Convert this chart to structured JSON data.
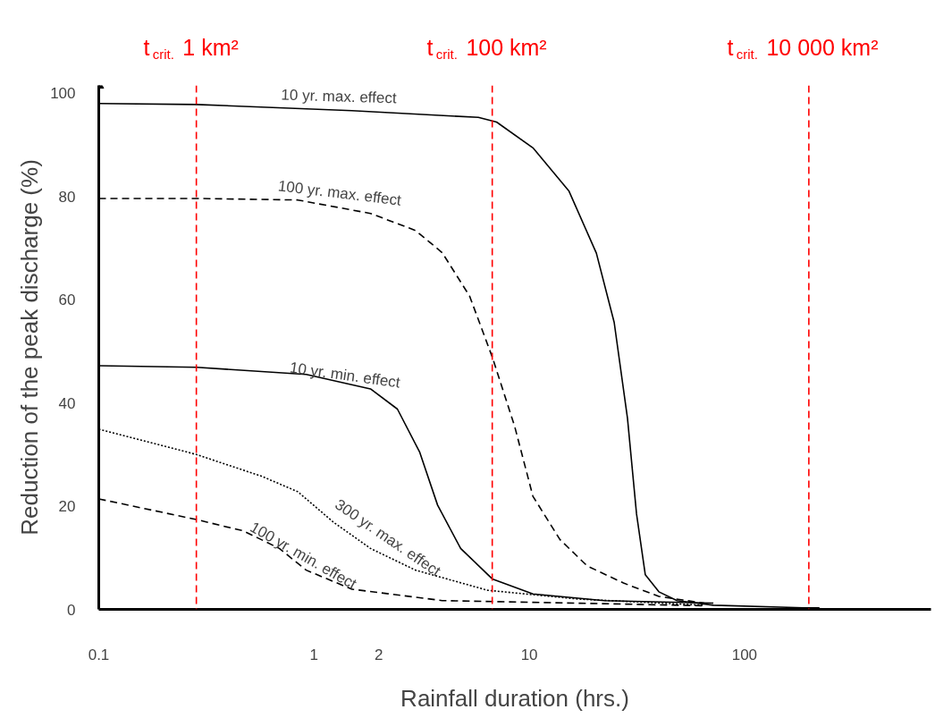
{
  "chart_data": {
    "type": "line",
    "xlabel": "Rainfall duration (hrs.)",
    "ylabel": "Reduction of the peak discharge (%)",
    "log": "x",
    "xlim": [
      0.1,
      735
    ],
    "ylim": [
      0,
      101.5
    ],
    "xticks": [
      0.1,
      1,
      2,
      10,
      100
    ],
    "yticks": [
      0,
      20,
      40,
      60,
      80,
      100
    ],
    "grid": false,
    "marker": "none",
    "series": [
      {
        "color": "#000000",
        "line_style": "solid",
        "x": [
          0.1,
          0.284,
          1.5,
          5.8,
          7.05,
          10.4,
          15.3,
          20.5,
          24.8,
          28.6,
          31.5,
          34.6,
          40,
          48.6,
          71.7,
          188,
          223
        ],
        "values": [
          98,
          97.8,
          96.6,
          95.3,
          94.4,
          89.4,
          81,
          69,
          55.6,
          37,
          18.5,
          6.7,
          3.4,
          1.7,
          0.8,
          0.3,
          0.3
        ]
      },
      {
        "color": "#000000",
        "line_style": "dashed",
        "x": [
          0.1,
          0.284,
          0.84,
          1.83,
          2.96,
          3.94,
          5.28,
          6.73,
          8.56,
          10.4,
          13.9,
          18.6,
          27.4,
          40,
          65
        ],
        "values": [
          79.6,
          79.6,
          79.3,
          76.7,
          73.4,
          69.1,
          60.7,
          48.9,
          35.4,
          21.9,
          13.5,
          8.4,
          5.1,
          2.5,
          1.2
        ]
      },
      {
        "color": "#000000",
        "line_style": "solid",
        "x": [
          0.1,
          0.284,
          0.92,
          1.83,
          2.44,
          3.1,
          3.75,
          4.8,
          6.73,
          10.4,
          22.3,
          71.7
        ],
        "values": [
          47.2,
          46.9,
          45.5,
          42.7,
          38.8,
          30.4,
          20.2,
          11.8,
          5.9,
          3.0,
          1.7,
          1.2
        ]
      },
      {
        "color": "#000000",
        "line_style": "dotted",
        "x": [
          0.1,
          0.284,
          0.57,
          0.84,
          1.23,
          1.83,
          2.96,
          6.4,
          16.8,
          65
        ],
        "values": [
          34.9,
          30,
          25.8,
          22.8,
          16.9,
          11.8,
          7.6,
          3.7,
          2.0,
          0.8
        ]
      },
      {
        "color": "#000000",
        "line_style": "dashed",
        "x": [
          0.1,
          0.284,
          0.47,
          0.69,
          0.92,
          1.5,
          3.94,
          16.8,
          65
        ],
        "values": [
          21.4,
          17.4,
          15.2,
          11.8,
          7.6,
          3.9,
          1.7,
          1.2,
          0.7
        ]
      }
    ],
    "ref_lines": [
      {
        "axis": "x",
        "value": 0.284,
        "label": "t$_{crit.}$ 1 km²",
        "color": "#ff0000",
        "line_style": "dashed"
      },
      {
        "axis": "x",
        "value": 6.73,
        "label": "t$_{crit.}$ 100 km²",
        "color": "#ff0000",
        "line_style": "dashed"
      },
      {
        "axis": "x",
        "value": 199,
        "label": "t$_{crit.}$ 10 000 km²",
        "color": "#ff0000",
        "line_style": "dashed"
      }
    ],
    "annotations": [
      {
        "text": "10 yr. max. effect",
        "x": 1.3,
        "y": 97
      },
      {
        "text": "100 yr. max. effect",
        "x": 1.3,
        "y": 78.3
      },
      {
        "text": "10 yr. min. effect",
        "x": 1.83,
        "y": 42.7
      },
      {
        "text": "300 yr. max. effect",
        "x": 1.83,
        "y": 11.8
      },
      {
        "text": "100 yr. min. effect",
        "x": 0.92,
        "y": 7.6
      }
    ]
  }
}
